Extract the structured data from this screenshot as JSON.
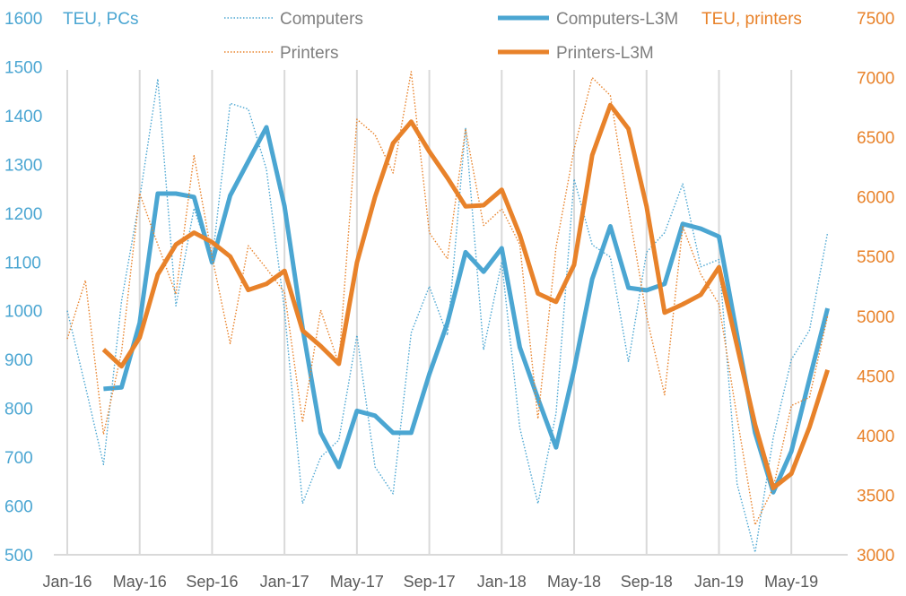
{
  "chart_data": {
    "type": "line",
    "title": "",
    "left_axis_title": "TEU, PCs",
    "right_axis_title": "TEU, printers",
    "ylim_left": [
      500,
      1600
    ],
    "ylim_right": [
      3000,
      7500
    ],
    "yticks_left": [
      "500",
      "600",
      "700",
      "800",
      "900",
      "1000",
      "1100",
      "1200",
      "1300",
      "1400",
      "1500",
      "1600"
    ],
    "yticks_right": [
      "3000",
      "3500",
      "4000",
      "4500",
      "5000",
      "5500",
      "6000",
      "6500",
      "7000",
      "7500"
    ],
    "x_tick_labels": [
      "Jan-16",
      "May-16",
      "Sep-16",
      "Jan-17",
      "May-17",
      "Sep-17",
      "Jan-18",
      "May-18",
      "Sep-18",
      "Jan-19",
      "May-19"
    ],
    "x_start": "Jan-16",
    "x_months": 43,
    "grid": "vertical at x tick labels",
    "legend_placement": "top",
    "colors": {
      "computers": "#4BA6D2",
      "printers": "#E8822A",
      "text": "#595959",
      "grid": "#D9D9D9"
    },
    "series": [
      {
        "name": "Computers",
        "axis": "left",
        "style": "dotted",
        "color": "#4BA6D2",
        "values": [
          1000,
          845,
          685,
          1020,
          1230,
          1475,
          1010,
          1210,
          1100,
          1425,
          1413,
          1290,
          1000,
          605,
          700,
          735,
          950,
          680,
          625,
          955,
          1050,
          950,
          1375,
          920,
          1100,
          760,
          605,
          790,
          1270,
          1135,
          1110,
          895,
          1120,
          1160,
          1260,
          1090,
          1105,
          645,
          505,
          740,
          900,
          960,
          1160
        ]
      },
      {
        "name": "Computers-L3M",
        "axis": "left",
        "style": "solid",
        "color": "#4BA6D2",
        "values": [
          null,
          null,
          840,
          843,
          975,
          1240,
          1240,
          1233,
          1099,
          1236,
          1306,
          1376,
          1214,
          965,
          750,
          680,
          795,
          785,
          750,
          750,
          870,
          975,
          1120,
          1080,
          1128,
          925,
          820,
          720,
          880,
          1065,
          1173,
          1047,
          1042,
          1055,
          1178,
          1168,
          1152,
          950,
          750,
          628,
          712,
          860,
          1005
        ]
      },
      {
        "name": "Printers",
        "axis": "right",
        "style": "dotted",
        "color": "#E8822A",
        "values": [
          4810,
          5300,
          4010,
          4700,
          6030,
          5600,
          5185,
          6345,
          5500,
          4770,
          5590,
          5400,
          5200,
          4110,
          5050,
          4600,
          6650,
          6520,
          6200,
          7050,
          5700,
          5480,
          6570,
          5760,
          5900,
          5600,
          4140,
          5580,
          6400,
          7000,
          6850,
          5900,
          5000,
          4340,
          5750,
          5350,
          5100,
          4150,
          3250,
          3560,
          4250,
          4320,
          5000
        ]
      },
      {
        "name": "Printers-L3M",
        "axis": "right",
        "style": "solid",
        "color": "#E8822A",
        "values": [
          null,
          null,
          4720,
          4580,
          4820,
          5350,
          5600,
          5700,
          5620,
          5500,
          5220,
          5270,
          5380,
          4880,
          4750,
          4600,
          5450,
          6000,
          6450,
          6630,
          6380,
          6160,
          5920,
          5930,
          6060,
          5680,
          5190,
          5120,
          5430,
          6350,
          6770,
          6570,
          5920,
          5030,
          5100,
          5180,
          5410,
          4750,
          4090,
          3560,
          3680,
          4070,
          4550
        ]
      }
    ]
  }
}
